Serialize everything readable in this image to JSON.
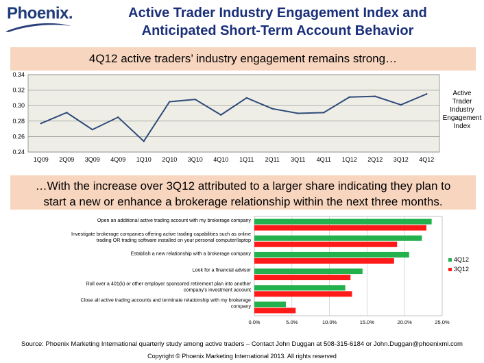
{
  "logo": {
    "text": "Phoenix."
  },
  "title": [
    "Active Trader Industry Engagement Index and",
    "Anticipated Short-Term Account Behavior"
  ],
  "banner1": "4Q12 active traders’ industry engagement remains strong…",
  "banner2": [
    "…With the increase over 3Q12 attributed to a larger share indicating they plan to",
    "start a new or enhance a brokerage relationship within the next three months."
  ],
  "colors": {
    "line": "#2e4a7a",
    "plot_bg": "#eeeee6",
    "green": "#22b14c",
    "red": "#ff1a1a",
    "title": "#1a2f7a",
    "banner": "#f8d5bf"
  },
  "chart_data": [
    {
      "type": "line",
      "title": "",
      "legend_label": "Active Trader Industry Engagement Index",
      "categories": [
        "1Q09",
        "2Q09",
        "3Q09",
        "4Q09",
        "1Q10",
        "2Q10",
        "3Q10",
        "4Q10",
        "1Q11",
        "2Q11",
        "3Q11",
        "4Q11",
        "1Q12",
        "2Q12",
        "3Q12",
        "4Q12"
      ],
      "values": [
        0.277,
        0.291,
        0.269,
        0.285,
        0.254,
        0.305,
        0.308,
        0.288,
        0.31,
        0.296,
        0.29,
        0.291,
        0.311,
        0.312,
        0.301,
        0.315
      ],
      "ylim": [
        0.24,
        0.34
      ],
      "yticks": [
        "0.24",
        "0.26",
        "0.28",
        "0.30",
        "0.32",
        "0.34"
      ],
      "grid": true
    },
    {
      "type": "bar",
      "orientation": "horizontal",
      "categories": [
        [
          "Open an additional active trading account with my brokerage company"
        ],
        [
          "Investigate brokerage companies offering active trading capabilities such as online",
          "trading OR trading software installed on your personal computer/laptop"
        ],
        [
          "Establish a new relationship with a brokerage company"
        ],
        [
          "Look for a financial advisor"
        ],
        [
          "Roll over a 401(k) or other employer sponsored retirement plan into another",
          "company's investment account"
        ],
        [
          "Close all active trading accounts and terminate relationship with my brokerage",
          "company"
        ]
      ],
      "series": [
        {
          "name": "4Q12",
          "values": [
            23.6,
            22.3,
            20.6,
            14.4,
            12.1,
            4.2
          ]
        },
        {
          "name": "3Q12",
          "values": [
            22.9,
            19.0,
            18.6,
            12.8,
            13.0,
            5.5
          ]
        }
      ],
      "xlim": [
        0,
        25
      ],
      "xticks": [
        "0.0%",
        "5.0%",
        "10.0%",
        "15.0%",
        "20.0%",
        "25.0%"
      ],
      "grid": true,
      "legend_position": "right"
    }
  ],
  "footer": {
    "source": "Source: Phoenix Marketing International quarterly study among active traders – Contact John Duggan at 508-315-6184 or John.Duggan@phoenixmi.com",
    "copyright": "Copyright © Phoenix Marketing International 2013. All rights reserved"
  }
}
